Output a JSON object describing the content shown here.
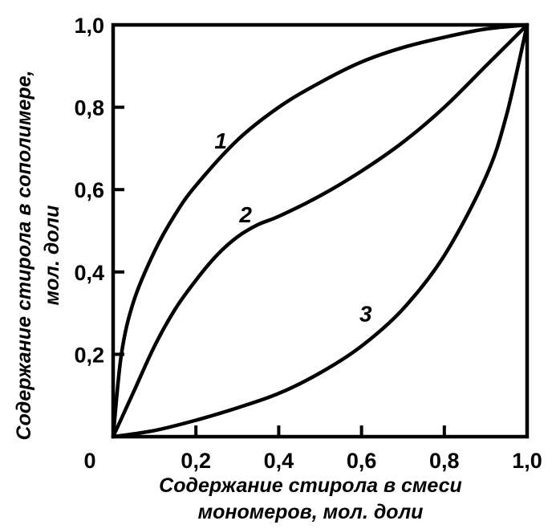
{
  "chart_data": {
    "type": "line",
    "xlabel_lines": [
      "Содержание стирола в смеси",
      "мономеров, мол. доли"
    ],
    "ylabel_lines": [
      "Содержание стирола в сополимере,",
      "мол. доли"
    ],
    "xlim": [
      0,
      1
    ],
    "ylim": [
      0,
      1
    ],
    "x_ticks": [
      {
        "value": 0.2,
        "label": "0,2"
      },
      {
        "value": 0.4,
        "label": "0,4"
      },
      {
        "value": 0.6,
        "label": "0,6"
      },
      {
        "value": 0.8,
        "label": "0,8"
      },
      {
        "value": 1.0,
        "label": "1,0"
      }
    ],
    "y_ticks": [
      {
        "value": 0.2,
        "label": "0,2"
      },
      {
        "value": 0.4,
        "label": "0,4"
      },
      {
        "value": 0.6,
        "label": "0,6"
      },
      {
        "value": 0.8,
        "label": "0,8"
      },
      {
        "value": 1.0,
        "label": "1,0"
      }
    ],
    "origin_label": "0",
    "grid": false,
    "series": [
      {
        "name": "1",
        "label_at": {
          "x": 0.26,
          "y": 0.7
        },
        "x": [
          0,
          0.02,
          0.05,
          0.1,
          0.15,
          0.2,
          0.3,
          0.4,
          0.5,
          0.6,
          0.7,
          0.8,
          0.9,
          1.0
        ],
        "y": [
          0,
          0.2,
          0.33,
          0.45,
          0.54,
          0.61,
          0.72,
          0.8,
          0.86,
          0.91,
          0.945,
          0.97,
          0.99,
          1.0
        ]
      },
      {
        "name": "2",
        "label_at": {
          "x": 0.32,
          "y": 0.52
        },
        "x": [
          0,
          0.05,
          0.1,
          0.15,
          0.2,
          0.25,
          0.3,
          0.35,
          0.4,
          0.5,
          0.6,
          0.7,
          0.8,
          0.9,
          0.95,
          1.0
        ],
        "y": [
          0,
          0.11,
          0.22,
          0.31,
          0.38,
          0.44,
          0.485,
          0.515,
          0.535,
          0.585,
          0.645,
          0.715,
          0.8,
          0.9,
          0.95,
          1.0
        ]
      },
      {
        "name": "3",
        "label_at": {
          "x": 0.61,
          "y": 0.28
        },
        "x": [
          0,
          0.1,
          0.2,
          0.3,
          0.4,
          0.5,
          0.6,
          0.7,
          0.8,
          0.9,
          0.95,
          1.0
        ],
        "y": [
          0,
          0.015,
          0.04,
          0.07,
          0.105,
          0.155,
          0.22,
          0.31,
          0.44,
          0.63,
          0.78,
          1.0
        ]
      }
    ]
  }
}
